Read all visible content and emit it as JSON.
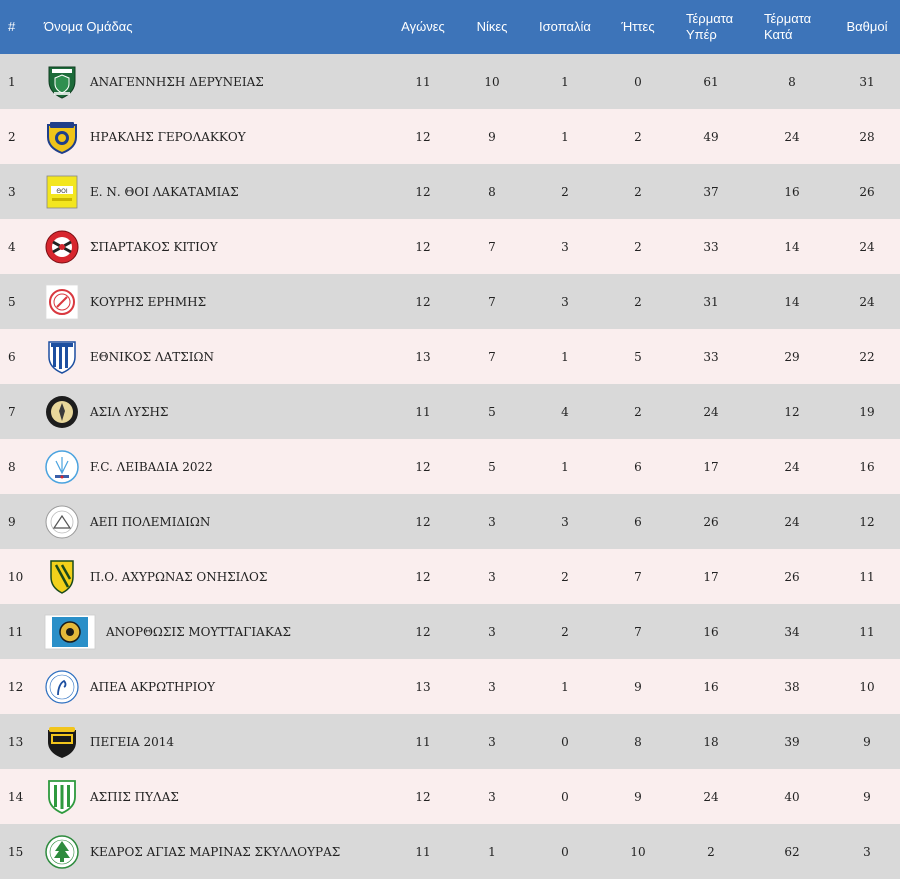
{
  "columns": {
    "rank": "#",
    "team": "Όνομα Ομάδας",
    "played": "Αγώνες",
    "wins": "Νίκες",
    "draws": "Ισοπαλία",
    "losses": "Ήττες",
    "goals_for_1": "Τέρματα",
    "goals_for_2": "Υπέρ",
    "goals_against_1": "Τέρματα",
    "goals_against_2": "Κατά",
    "points": "Βαθμοί"
  },
  "rows": [
    {
      "rank": "1",
      "team": "ΑΝΑΓΕΝΝΗΣΗ ΔΕΡΥΝΕΙΑΣ",
      "logo": "shield-logo-green",
      "played": "11",
      "wins": "10",
      "draws": "1",
      "losses": "0",
      "gf": "61",
      "ga": "8",
      "pts": "31"
    },
    {
      "rank": "2",
      "team": "ΗΡΑΚΛΗΣ ΓΕΡΟΛΑΚΚΟΥ",
      "logo": "crest-logo-yellow-blue",
      "played": "12",
      "wins": "9",
      "draws": "1",
      "losses": "2",
      "gf": "49",
      "ga": "24",
      "pts": "28"
    },
    {
      "rank": "3",
      "team": "Ε. Ν. ΘΟΙ ΛΑΚΑΤΑΜΙΑΣ",
      "logo": "square-logo-yellow",
      "played": "12",
      "wins": "8",
      "draws": "2",
      "losses": "2",
      "gf": "37",
      "ga": "16",
      "pts": "26"
    },
    {
      "rank": "4",
      "team": "ΣΠΑΡΤΑΚΟΣ ΚΙΤΙΟΥ",
      "logo": "round-logo-red",
      "played": "12",
      "wins": "7",
      "draws": "3",
      "losses": "2",
      "gf": "33",
      "ga": "14",
      "pts": "24"
    },
    {
      "rank": "5",
      "team": "ΚΟΥΡΗΣ ΕΡΗΜΗΣ",
      "logo": "round-logo-white-red",
      "played": "12",
      "wins": "7",
      "draws": "3",
      "losses": "2",
      "gf": "31",
      "ga": "14",
      "pts": "24"
    },
    {
      "rank": "6",
      "team": "ΕΘΝΙΚΟΣ ΛΑΤΣΙΩΝ",
      "logo": "shield-logo-blue-stripes",
      "played": "13",
      "wins": "7",
      "draws": "1",
      "losses": "5",
      "gf": "33",
      "ga": "29",
      "pts": "22"
    },
    {
      "rank": "7",
      "team": "ΑΣΙΛ ΛΥΣΗΣ",
      "logo": "round-logo-black-gold",
      "played": "11",
      "wins": "5",
      "draws": "4",
      "losses": "2",
      "gf": "24",
      "ga": "12",
      "pts": "19"
    },
    {
      "rank": "8",
      "team": "F.C. ΛΕΙΒΑΔΙΑ 2022",
      "logo": "round-logo-light-blue",
      "played": "12",
      "wins": "5",
      "draws": "1",
      "losses": "6",
      "gf": "17",
      "ga": "24",
      "pts": "16"
    },
    {
      "rank": "9",
      "team": "ΑΕΠ ΠΟΛΕΜΙΔΙΩΝ",
      "logo": "round-logo-white-grey",
      "played": "12",
      "wins": "3",
      "draws": "3",
      "losses": "6",
      "gf": "26",
      "ga": "24",
      "pts": "12"
    },
    {
      "rank": "10",
      "team": "Π.Ο. ΑΧΥΡΩΝΑΣ ΟΝΗΣΙΛΟΣ",
      "logo": "shield-logo-yellow-black",
      "played": "12",
      "wins": "3",
      "draws": "2",
      "losses": "7",
      "gf": "17",
      "ga": "26",
      "pts": "11"
    },
    {
      "rank": "11",
      "team": "ΑΝΟΡΘΩΣΙΣ ΜΟΥΤΤΑΓΙΑΚΑΣ",
      "logo": "wide-logo-blue",
      "played": "12",
      "wins": "3",
      "draws": "2",
      "losses": "7",
      "gf": "16",
      "ga": "34",
      "pts": "11"
    },
    {
      "rank": "12",
      "team": "ΑΠΕΑ ΑΚΡΩΤΗΡΙΟΥ",
      "logo": "round-logo-white-blue",
      "played": "13",
      "wins": "3",
      "draws": "1",
      "losses": "9",
      "gf": "16",
      "ga": "38",
      "pts": "10"
    },
    {
      "rank": "13",
      "team": "ΠΕΓΕΙΑ 2014",
      "logo": "crest-logo-black-yellow",
      "played": "11",
      "wins": "3",
      "draws": "0",
      "losses": "8",
      "gf": "18",
      "ga": "39",
      "pts": "9"
    },
    {
      "rank": "14",
      "team": "ΑΣΠΙΣ ΠΥΛΑΣ",
      "logo": "shield-logo-green-white",
      "played": "12",
      "wins": "3",
      "draws": "0",
      "losses": "9",
      "gf": "24",
      "ga": "40",
      "pts": "9"
    },
    {
      "rank": "15",
      "team": "ΚΕΔΡΟΣ ΑΓΙΑΣ ΜΑΡΙΝΑΣ ΣΚΥΛΛΟΥΡΑΣ",
      "logo": "round-logo-cedar-green",
      "played": "11",
      "wins": "1",
      "draws": "0",
      "losses": "10",
      "gf": "2",
      "ga": "62",
      "pts": "3"
    }
  ],
  "colors": {
    "header_bg": "#3d74b9",
    "row_odd": "#d9d9d9",
    "row_even": "#faeeee"
  }
}
